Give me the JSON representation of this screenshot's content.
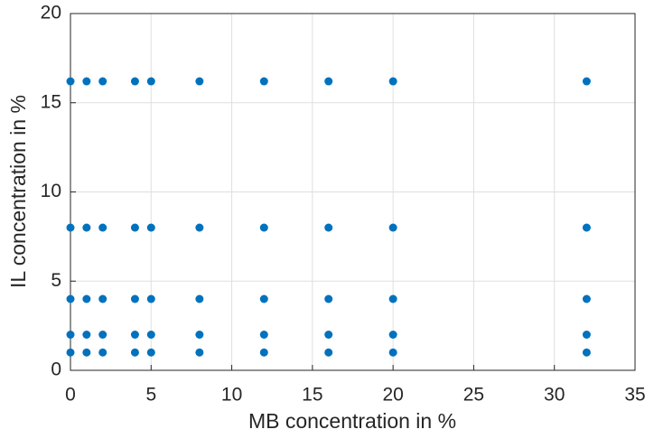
{
  "chart_data": {
    "type": "scatter",
    "xlabel": "MB concentration in %",
    "ylabel": "IL concentration in %",
    "series": [
      {
        "color": "#0072bd",
        "x": [
          0,
          0,
          0,
          0,
          0,
          1,
          1,
          1,
          1,
          1,
          2,
          2,
          2,
          2,
          2,
          4,
          4,
          4,
          4,
          4,
          5,
          5,
          5,
          5,
          5,
          8,
          8,
          8,
          8,
          8,
          12,
          12,
          12,
          12,
          12,
          16,
          16,
          16,
          16,
          16,
          20,
          20,
          20,
          20,
          20,
          32,
          32,
          32,
          32,
          32
        ],
        "values": [
          1,
          2,
          4,
          8,
          16.2,
          1,
          2,
          4,
          8,
          16.2,
          1,
          2,
          4,
          8,
          16.2,
          1,
          2,
          4,
          8,
          16.2,
          1,
          2,
          4,
          8,
          16.2,
          1,
          2,
          4,
          8,
          16.2,
          1,
          2,
          4,
          8,
          16.2,
          1,
          2,
          4,
          8,
          16.2,
          1,
          2,
          4,
          8,
          16.2,
          1,
          2,
          4,
          8,
          16.2
        ]
      }
    ],
    "xlim": [
      0,
      35
    ],
    "xticks": [
      0,
      5,
      10,
      15,
      20,
      25,
      30,
      35
    ],
    "ylim": [
      0,
      20
    ],
    "yticks": [
      0,
      5,
      10,
      15,
      20
    ],
    "grid": true
  }
}
